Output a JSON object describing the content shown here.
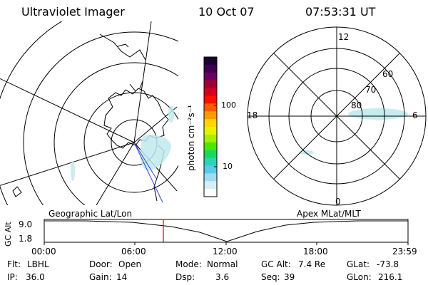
{
  "header": {
    "title": "Ultraviolet Imager",
    "date": "10 Oct 07",
    "time": "07:53:31 UT"
  },
  "colorbar": {
    "label": "photon cm⁻²s⁻¹",
    "ticks": [
      "100",
      "10"
    ],
    "colors": [
      "#1a0033",
      "#3d0050",
      "#6a0062",
      "#a0003a",
      "#d4001e",
      "#ff0e00",
      "#ff5a00",
      "#ff9b00",
      "#ffd600",
      "#e6f200",
      "#a5ef00",
      "#4de600",
      "#14dc5a",
      "#2ad4b4",
      "#5ec9e8",
      "#9edcf0",
      "#d8eef4",
      "#ffffff"
    ]
  },
  "polar_plot": {
    "mlt_labels": {
      "top": "12",
      "right": "6",
      "bottom": "0",
      "left": "18"
    },
    "lat_labels": [
      "60",
      "70",
      "80"
    ]
  },
  "timeline": {
    "left_label": "Geographic Lat/Lon",
    "right_label": "Apex MLat/MLT",
    "axis_label": "GC Alt",
    "y_ticks": [
      "9.0",
      "1.8"
    ],
    "x_ticks": [
      "00:00",
      "06:00",
      "12:00",
      "18:00",
      "23:59"
    ]
  },
  "footer": {
    "row1": [
      {
        "key": "Flt:",
        "value": "LBHL"
      },
      {
        "key": "Door:",
        "value": "Open"
      },
      {
        "key": "Mode:",
        "value": "Normal"
      },
      {
        "key": "GC Alt:",
        "value": "7.4 Re"
      },
      {
        "key": "GLat:",
        "value": "-73.8"
      }
    ],
    "row2": [
      {
        "key": "IP:",
        "value": "36.0"
      },
      {
        "key": "Gain:",
        "value": "14"
      },
      {
        "key": "Dsp:",
        "value": "3.6"
      },
      {
        "key": "Seq:",
        "value": "39"
      },
      {
        "key": "GLon:",
        "value": "216.1"
      }
    ]
  },
  "theme": {
    "line": "#000000",
    "aurora": "#bfe9ee",
    "marker": "#dd0000",
    "track": "#3344cc"
  }
}
